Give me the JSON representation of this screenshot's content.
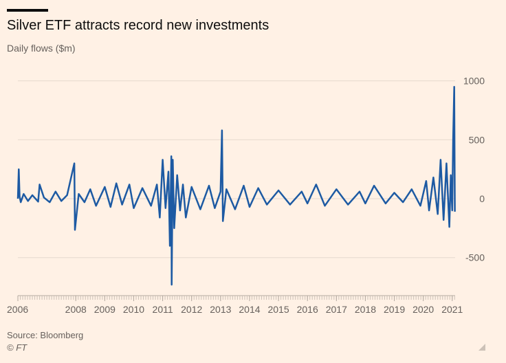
{
  "header": {
    "title": "Silver ETF attracts record new investments",
    "subtitle": "Daily flows ($m)"
  },
  "footer": {
    "source": "Source: Bloomberg",
    "credit": "© FT"
  },
  "colors": {
    "background": "#FFF1E5",
    "series": "#1D5AA3",
    "grid": "#E6D9CE",
    "text": "#66605C"
  },
  "chart_data": {
    "type": "line",
    "title": "Silver ETF attracts record new investments",
    "subtitle": "Daily flows ($m)",
    "xlabel": "",
    "ylabel": "",
    "x_ticks": [
      "2006",
      "2008",
      "2009",
      "2010",
      "2011",
      "2012",
      "2013",
      "2014",
      "2015",
      "2016",
      "2017",
      "2018",
      "2019",
      "2020",
      "2021"
    ],
    "y_ticks": [
      1000,
      500,
      0,
      -500
    ],
    "ylim": [
      -800,
      1000
    ],
    "xlim": [
      2006.0,
      2021.1
    ],
    "y_axis_side": "right",
    "grid": true,
    "series": [
      {
        "values": [
          {
            "x": 2006.0,
            "y": 0
          },
          {
            "x": 2006.03,
            "y": 250
          },
          {
            "x": 2006.06,
            "y": 20
          },
          {
            "x": 2006.1,
            "y": -30
          },
          {
            "x": 2006.2,
            "y": 40
          },
          {
            "x": 2006.35,
            "y": -20
          },
          {
            "x": 2006.5,
            "y": 30
          },
          {
            "x": 2006.7,
            "y": -25
          },
          {
            "x": 2006.75,
            "y": 120
          },
          {
            "x": 2006.9,
            "y": 10
          },
          {
            "x": 2007.1,
            "y": -30
          },
          {
            "x": 2007.3,
            "y": 60
          },
          {
            "x": 2007.5,
            "y": -20
          },
          {
            "x": 2007.7,
            "y": 30
          },
          {
            "x": 2007.95,
            "y": 300
          },
          {
            "x": 2007.97,
            "y": -265
          },
          {
            "x": 2008.1,
            "y": 40
          },
          {
            "x": 2008.3,
            "y": -30
          },
          {
            "x": 2008.5,
            "y": 80
          },
          {
            "x": 2008.7,
            "y": -60
          },
          {
            "x": 2009.0,
            "y": 100
          },
          {
            "x": 2009.2,
            "y": -70
          },
          {
            "x": 2009.4,
            "y": 130
          },
          {
            "x": 2009.6,
            "y": -50
          },
          {
            "x": 2009.85,
            "y": 120
          },
          {
            "x": 2010.0,
            "y": -80
          },
          {
            "x": 2010.3,
            "y": 90
          },
          {
            "x": 2010.6,
            "y": -60
          },
          {
            "x": 2010.8,
            "y": 120
          },
          {
            "x": 2010.9,
            "y": -160
          },
          {
            "x": 2011.0,
            "y": 330
          },
          {
            "x": 2011.1,
            "y": -80
          },
          {
            "x": 2011.2,
            "y": 230
          },
          {
            "x": 2011.25,
            "y": -400
          },
          {
            "x": 2011.3,
            "y": 360
          },
          {
            "x": 2011.31,
            "y": -730
          },
          {
            "x": 2011.35,
            "y": 330
          },
          {
            "x": 2011.4,
            "y": -250
          },
          {
            "x": 2011.5,
            "y": 200
          },
          {
            "x": 2011.6,
            "y": -100
          },
          {
            "x": 2011.7,
            "y": 120
          },
          {
            "x": 2011.8,
            "y": -160
          },
          {
            "x": 2012.0,
            "y": 100
          },
          {
            "x": 2012.3,
            "y": -90
          },
          {
            "x": 2012.6,
            "y": 110
          },
          {
            "x": 2012.8,
            "y": -80
          },
          {
            "x": 2013.0,
            "y": 60
          },
          {
            "x": 2013.05,
            "y": 580
          },
          {
            "x": 2013.08,
            "y": -190
          },
          {
            "x": 2013.2,
            "y": 80
          },
          {
            "x": 2013.5,
            "y": -90
          },
          {
            "x": 2013.8,
            "y": 110
          },
          {
            "x": 2014.0,
            "y": -70
          },
          {
            "x": 2014.3,
            "y": 90
          },
          {
            "x": 2014.6,
            "y": -50
          },
          {
            "x": 2015.0,
            "y": 70
          },
          {
            "x": 2015.4,
            "y": -50
          },
          {
            "x": 2015.8,
            "y": 60
          },
          {
            "x": 2016.0,
            "y": -40
          },
          {
            "x": 2016.3,
            "y": 120
          },
          {
            "x": 2016.6,
            "y": -60
          },
          {
            "x": 2017.0,
            "y": 80
          },
          {
            "x": 2017.4,
            "y": -50
          },
          {
            "x": 2017.8,
            "y": 60
          },
          {
            "x": 2018.0,
            "y": -40
          },
          {
            "x": 2018.3,
            "y": 110
          },
          {
            "x": 2018.7,
            "y": -40
          },
          {
            "x": 2019.0,
            "y": 50
          },
          {
            "x": 2019.3,
            "y": -30
          },
          {
            "x": 2019.6,
            "y": 80
          },
          {
            "x": 2019.9,
            "y": -60
          },
          {
            "x": 2020.1,
            "y": 150
          },
          {
            "x": 2020.2,
            "y": -100
          },
          {
            "x": 2020.35,
            "y": 180
          },
          {
            "x": 2020.5,
            "y": -130
          },
          {
            "x": 2020.6,
            "y": 330
          },
          {
            "x": 2020.7,
            "y": -180
          },
          {
            "x": 2020.8,
            "y": 300
          },
          {
            "x": 2020.9,
            "y": -240
          },
          {
            "x": 2020.95,
            "y": 200
          },
          {
            "x": 2021.0,
            "y": -100
          },
          {
            "x": 2021.03,
            "y": 500
          },
          {
            "x": 2021.07,
            "y": 950
          },
          {
            "x": 2021.09,
            "y": -110
          }
        ]
      }
    ]
  }
}
